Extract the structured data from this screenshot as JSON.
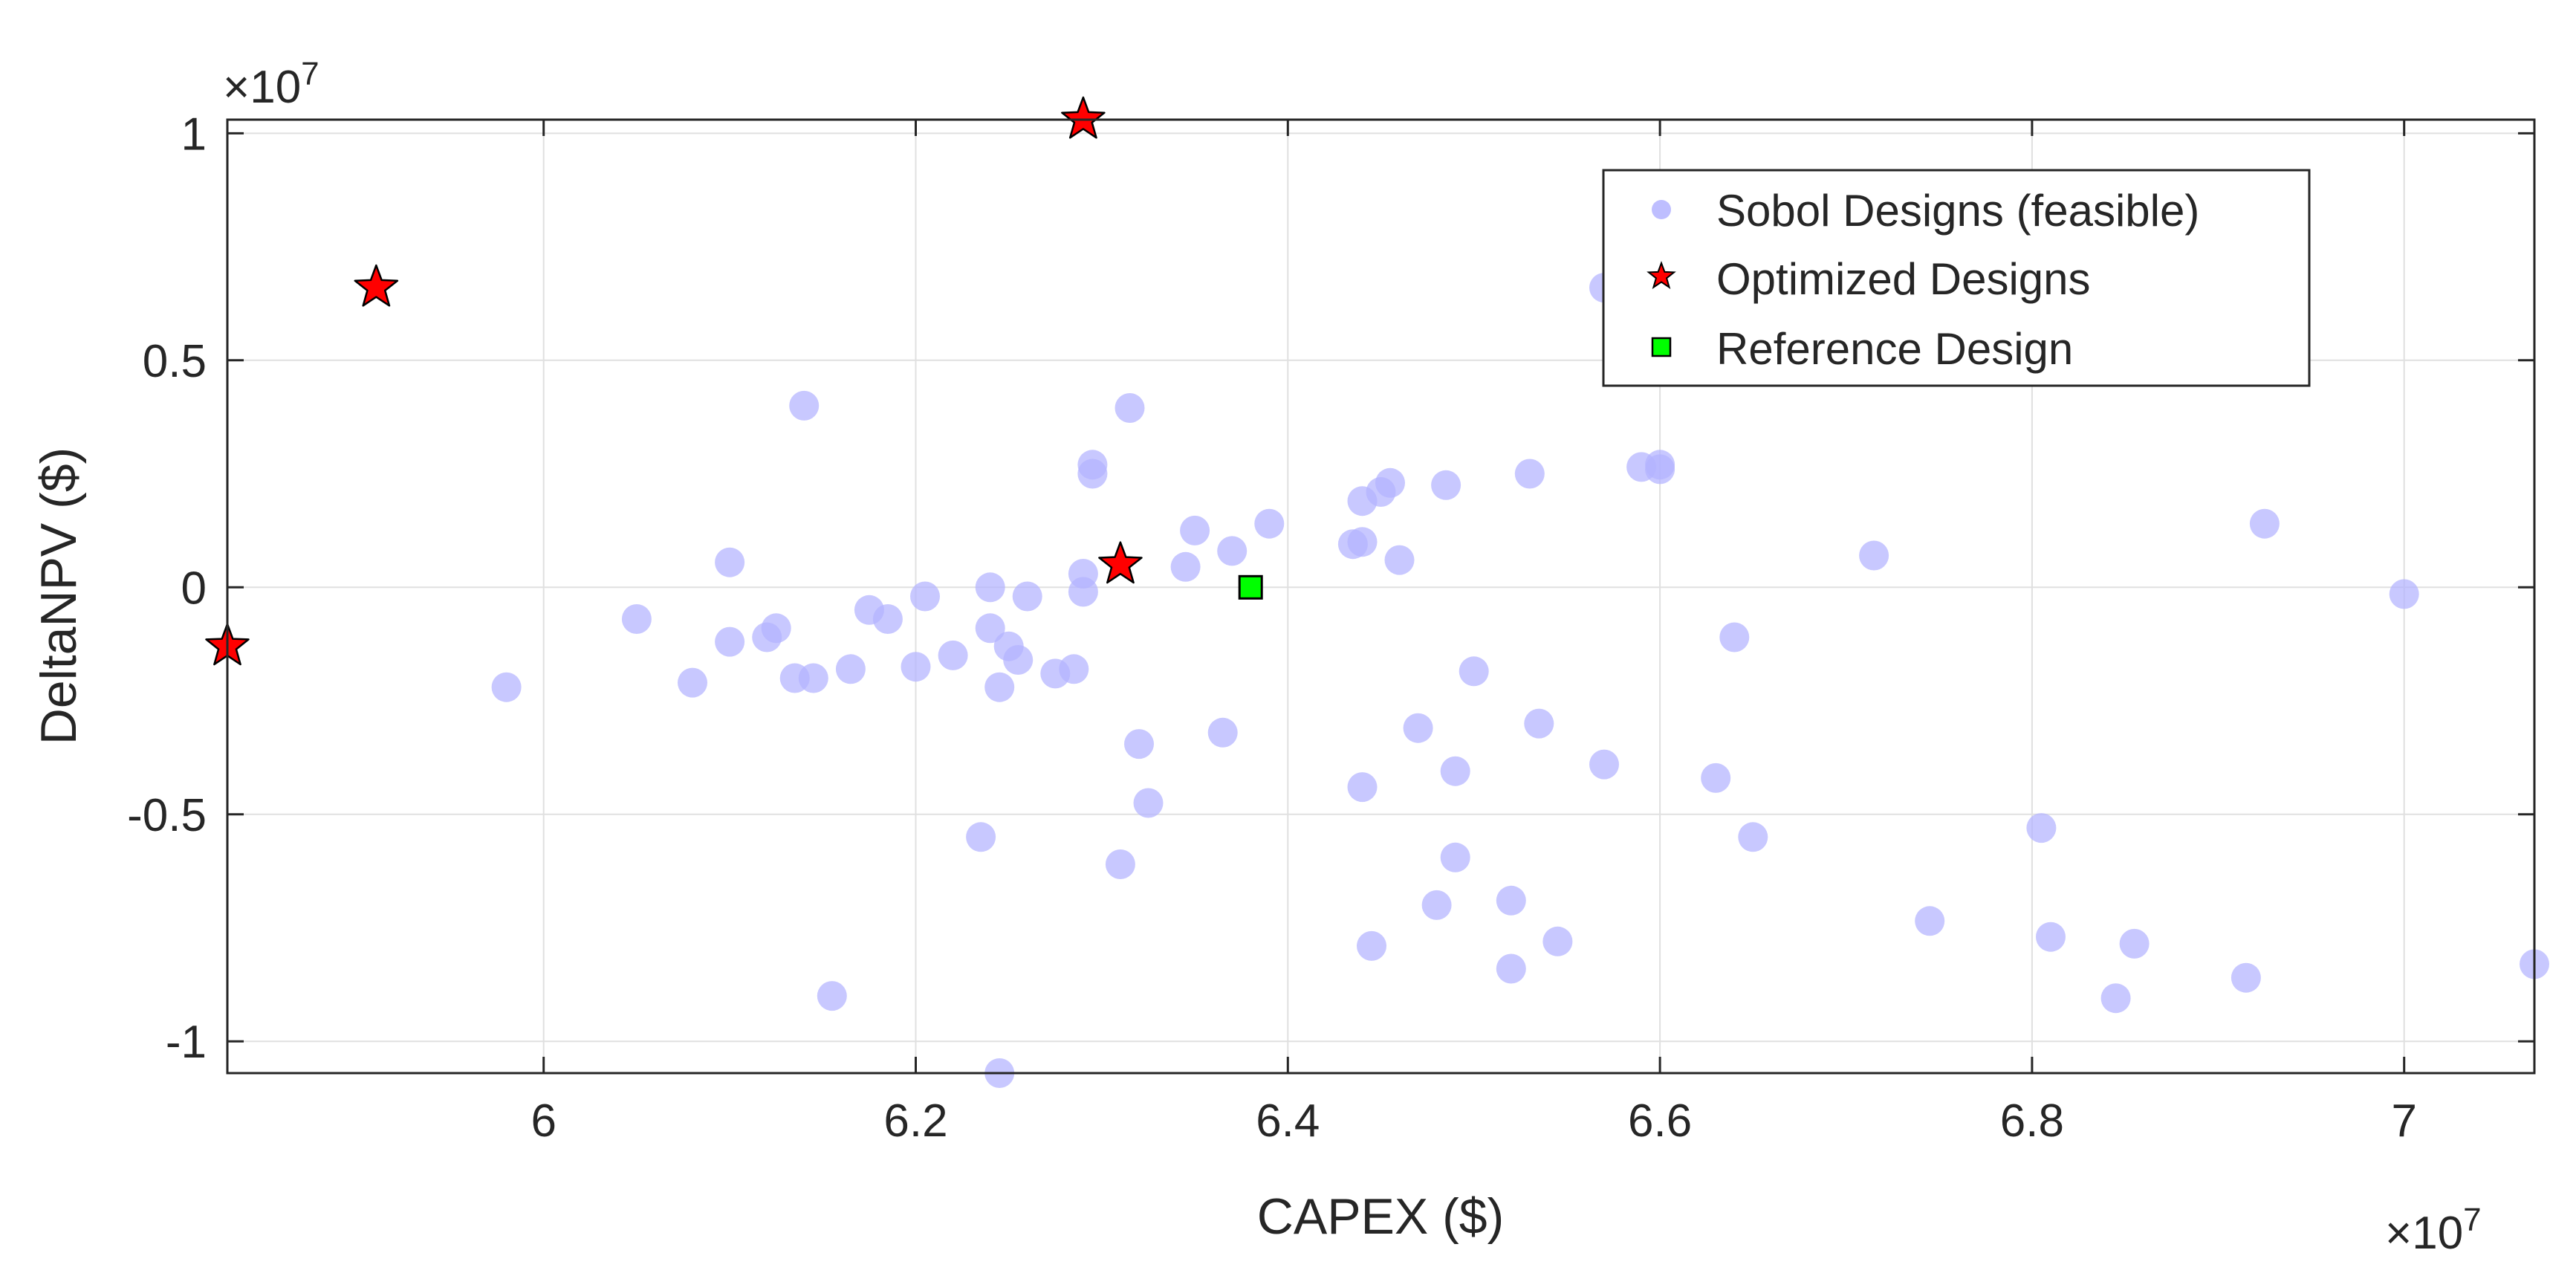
{
  "chart_data": {
    "type": "scatter",
    "xlabel": "CAPEX ($)",
    "ylabel": "DeltaNPV ($)",
    "x_exponent": "×10",
    "x_exponent_power": "7",
    "y_exponent": "×10",
    "y_exponent_power": "7",
    "xlim": [
      5.83,
      7.07
    ],
    "ylim": [
      -1.07,
      1.03
    ],
    "xticks": [
      6.0,
      6.2,
      6.4,
      6.6,
      6.8,
      7.0
    ],
    "xtick_labels": [
      "6",
      "6.2",
      "6.4",
      "6.6",
      "6.8",
      "7"
    ],
    "yticks": [
      -1.0,
      -0.5,
      0.0,
      0.5,
      1.0
    ],
    "ytick_labels": [
      "-1",
      "-0.5",
      "0",
      "0.5",
      "1"
    ],
    "grid": true,
    "legend_position": "top-right",
    "series": [
      {
        "name": "Sobol Designs (feasible)",
        "marker": "circle",
        "color": "#b3b3ff",
        "points": [
          [
            5.98,
            -0.22
          ],
          [
            6.05,
            -0.07
          ],
          [
            6.08,
            -0.21
          ],
          [
            6.1,
            0.055
          ],
          [
            6.1,
            -0.12
          ],
          [
            6.12,
            -0.11
          ],
          [
            6.125,
            -0.09
          ],
          [
            6.135,
            -0.2
          ],
          [
            6.14,
            0.4
          ],
          [
            6.145,
            -0.2
          ],
          [
            6.165,
            -0.18
          ],
          [
            6.175,
            -0.05
          ],
          [
            6.185,
            -0.07
          ],
          [
            6.2,
            -0.175
          ],
          [
            6.205,
            -0.02
          ],
          [
            6.22,
            -0.15
          ],
          [
            6.235,
            -0.55
          ],
          [
            6.24,
            0.0
          ],
          [
            6.24,
            -0.09
          ],
          [
            6.245,
            -1.07
          ],
          [
            6.245,
            -0.22
          ],
          [
            6.25,
            -0.13
          ],
          [
            6.255,
            -0.16
          ],
          [
            6.26,
            -0.02
          ],
          [
            6.275,
            -0.19
          ],
          [
            6.285,
            -0.18
          ],
          [
            6.29,
            0.03
          ],
          [
            6.29,
            -0.01
          ],
          [
            6.295,
            0.27
          ],
          [
            6.295,
            0.25
          ],
          [
            6.31,
            -0.61
          ],
          [
            6.315,
            0.395
          ],
          [
            6.32,
            -0.345
          ],
          [
            6.325,
            -0.475
          ],
          [
            6.345,
            0.045
          ],
          [
            6.35,
            0.125
          ],
          [
            6.365,
            -0.32
          ],
          [
            6.37,
            0.08
          ],
          [
            6.39,
            0.14
          ],
          [
            6.155,
            -0.9
          ],
          [
            6.435,
            0.095
          ],
          [
            6.44,
            0.19
          ],
          [
            6.44,
            0.1
          ],
          [
            6.44,
            -0.44
          ],
          [
            6.445,
            -0.79
          ],
          [
            6.45,
            0.21
          ],
          [
            6.455,
            0.23
          ],
          [
            6.46,
            0.06
          ],
          [
            6.47,
            -0.31
          ],
          [
            6.48,
            -0.7
          ],
          [
            6.485,
            0.225
          ],
          [
            6.49,
            -0.405
          ],
          [
            6.49,
            -0.595
          ],
          [
            6.5,
            -0.185
          ],
          [
            6.52,
            -0.69
          ],
          [
            6.52,
            -0.84
          ],
          [
            6.53,
            0.25
          ],
          [
            6.535,
            -0.3
          ],
          [
            6.545,
            -0.78
          ],
          [
            6.57,
            -0.39
          ],
          [
            6.57,
            0.66
          ],
          [
            6.59,
            0.265
          ],
          [
            6.6,
            0.27
          ],
          [
            6.6,
            0.26
          ],
          [
            6.63,
            -0.42
          ],
          [
            6.64,
            -0.11
          ],
          [
            6.65,
            -0.55
          ],
          [
            6.715,
            0.07
          ],
          [
            6.745,
            -0.735
          ],
          [
            6.805,
            -0.53
          ],
          [
            6.81,
            -0.77
          ],
          [
            6.845,
            -0.905
          ],
          [
            6.855,
            -0.785
          ],
          [
            6.915,
            -0.86
          ],
          [
            6.925,
            0.14
          ],
          [
            7.0,
            -0.015
          ],
          [
            7.07,
            -0.83
          ]
        ]
      },
      {
        "name": "Optimized Designs",
        "marker": "star",
        "color": "#ff0000",
        "points": [
          [
            5.83,
            -0.13
          ],
          [
            5.91,
            0.66
          ],
          [
            6.29,
            1.03
          ],
          [
            6.31,
            0.05
          ]
        ]
      },
      {
        "name": "Reference Design",
        "marker": "square",
        "color": "#00ff00",
        "points": [
          [
            6.38,
            0.0
          ]
        ]
      }
    ]
  }
}
